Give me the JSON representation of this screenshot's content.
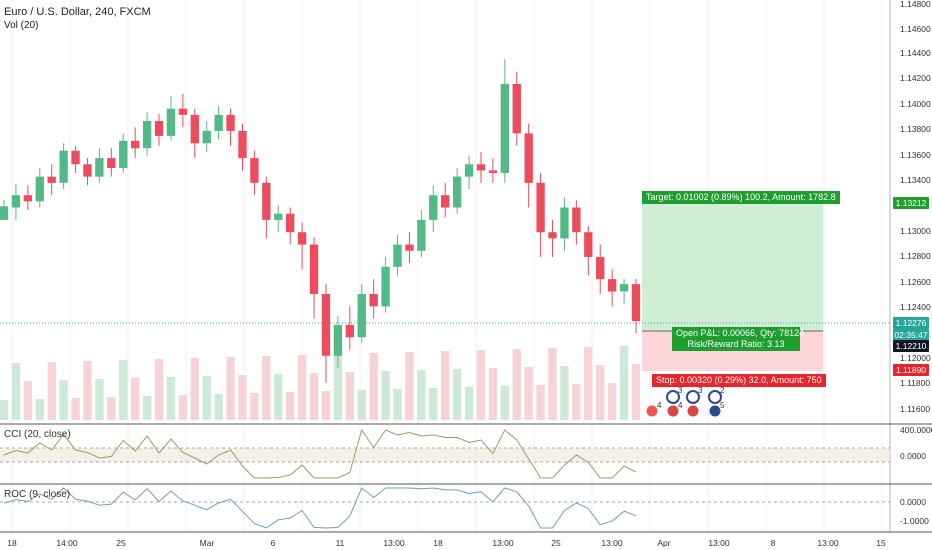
{
  "header": {
    "symbol_title": "Euro / U.S. Dollar, 240, FXCM",
    "volume_label": "Vol (20)"
  },
  "panes": {
    "cci_label": "CCI (20, close)",
    "roc_label": "ROC (9, close)"
  },
  "price_axis": [
    "1.14800",
    "1.14600",
    "1.14400",
    "1.14200",
    "1.14000",
    "1.13800",
    "1.13600",
    "1.13400",
    "1.13000",
    "1.12800",
    "1.12600",
    "1.12400",
    "1.12000",
    "1.11800",
    "1.11600"
  ],
  "cci_axis": [
    "400.0000",
    "0.0000"
  ],
  "roc_axis": [
    "0.0000",
    "-1.0000"
  ],
  "time_axis": [
    "18",
    "14:00",
    "25",
    "Mar",
    "6",
    "11",
    "13:00",
    "18",
    "13:00",
    "25",
    "13:00",
    "Apr",
    "13:00",
    "8",
    "13:00",
    "15"
  ],
  "price_tags": {
    "target": "1.13212",
    "current": "1.12276",
    "countdown": "02:35:47",
    "entry": "1.12210",
    "stop": "1.11890"
  },
  "position": {
    "target_text": "Target: 0.01002 (0.89%) 100.2, Amount: 1782.8",
    "pnl_text": "Open P&L: 0.00066, Qty: 78124",
    "rr_text": "Risk/Reward Ratio: 3.13",
    "stop_text": "Stop: 0.00320 (0.29%) 32.0, Amount: 750"
  },
  "events": {
    "counts": [
      "3",
      "3",
      "2"
    ],
    "flag_counts": [
      "4",
      "4",
      "5"
    ]
  },
  "colors": {
    "up": "#53b987",
    "down": "#eb4d5c",
    "target_zone": "#c8ebcc",
    "stop_zone": "#fbd0d3",
    "target_label": "#1e9e2e",
    "stop_label": "#e8252b",
    "current_price": "#26a69a",
    "entry_price": "#131722",
    "cci_line": "#a0996c",
    "roc_line": "#6e9ec8"
  },
  "chart_data": {
    "type": "candlestick",
    "symbol": "EURUSD",
    "timeframe": "240",
    "ylim": [
      1.1148,
      1.1488
    ],
    "candles": [
      [
        1.131,
        1.1321,
        1.1312,
        1.1326
      ],
      [
        1.132,
        1.133,
        1.131,
        1.1339
      ],
      [
        1.133,
        1.1325,
        1.1318,
        1.1338
      ],
      [
        1.1325,
        1.1345,
        1.132,
        1.1352
      ],
      [
        1.1345,
        1.134,
        1.133,
        1.1355
      ],
      [
        1.134,
        1.1366,
        1.1335,
        1.1372
      ],
      [
        1.1366,
        1.1355,
        1.1348,
        1.137
      ],
      [
        1.1355,
        1.1345,
        1.1338,
        1.136
      ],
      [
        1.1345,
        1.136,
        1.134,
        1.1368
      ],
      [
        1.136,
        1.1352,
        1.1345,
        1.1368
      ],
      [
        1.1352,
        1.1374,
        1.1348,
        1.138
      ],
      [
        1.1374,
        1.1368,
        1.136,
        1.1385
      ],
      [
        1.1368,
        1.139,
        1.1362,
        1.1397
      ],
      [
        1.139,
        1.1378,
        1.137,
        1.1396
      ],
      [
        1.1378,
        1.14,
        1.1374,
        1.141
      ],
      [
        1.14,
        1.1395,
        1.1385,
        1.1412
      ],
      [
        1.1395,
        1.1372,
        1.136,
        1.14
      ],
      [
        1.1372,
        1.1382,
        1.1365,
        1.139
      ],
      [
        1.1382,
        1.1395,
        1.1375,
        1.1402
      ],
      [
        1.1395,
        1.1382,
        1.137,
        1.14
      ],
      [
        1.1382,
        1.136,
        1.135,
        1.1388
      ],
      [
        1.136,
        1.134,
        1.133,
        1.1366
      ],
      [
        1.134,
        1.131,
        1.1295,
        1.1345
      ],
      [
        1.131,
        1.1315,
        1.13,
        1.1322
      ],
      [
        1.1315,
        1.13,
        1.129,
        1.132
      ],
      [
        1.13,
        1.129,
        1.127,
        1.1308
      ],
      [
        1.129,
        1.125,
        1.123,
        1.1296
      ],
      [
        1.125,
        1.12,
        1.1178,
        1.1258
      ],
      [
        1.12,
        1.1225,
        1.119,
        1.1232
      ],
      [
        1.1225,
        1.1215,
        1.1205,
        1.124
      ],
      [
        1.1215,
        1.125,
        1.121,
        1.1258
      ],
      [
        1.125,
        1.124,
        1.123,
        1.1262
      ],
      [
        1.124,
        1.1272,
        1.1235,
        1.128
      ],
      [
        1.1272,
        1.129,
        1.1265,
        1.1298
      ],
      [
        1.129,
        1.1285,
        1.1275,
        1.13
      ],
      [
        1.1285,
        1.131,
        1.128,
        1.1318
      ],
      [
        1.131,
        1.133,
        1.13,
        1.1338
      ],
      [
        1.133,
        1.132,
        1.1312,
        1.134
      ],
      [
        1.132,
        1.1345,
        1.1315,
        1.1352
      ],
      [
        1.1345,
        1.1355,
        1.1335,
        1.1362
      ],
      [
        1.1355,
        1.135,
        1.134,
        1.1365
      ],
      [
        1.135,
        1.1348,
        1.134,
        1.136
      ],
      [
        1.1348,
        1.142,
        1.134,
        1.144
      ],
      [
        1.142,
        1.138,
        1.137,
        1.143
      ],
      [
        1.138,
        1.134,
        1.132,
        1.1388
      ],
      [
        1.134,
        1.13,
        1.128,
        1.1348
      ],
      [
        1.13,
        1.1295,
        1.128,
        1.131
      ],
      [
        1.1295,
        1.132,
        1.1285,
        1.1328
      ],
      [
        1.132,
        1.13,
        1.129,
        1.1326
      ],
      [
        1.13,
        1.128,
        1.1265,
        1.1305
      ],
      [
        1.128,
        1.1262,
        1.125,
        1.129
      ],
      [
        1.1262,
        1.1252,
        1.124,
        1.127
      ],
      [
        1.1252,
        1.1258,
        1.1242,
        1.1262
      ],
      [
        1.1258,
        1.1228,
        1.1218,
        1.1262
      ]
    ]
  }
}
